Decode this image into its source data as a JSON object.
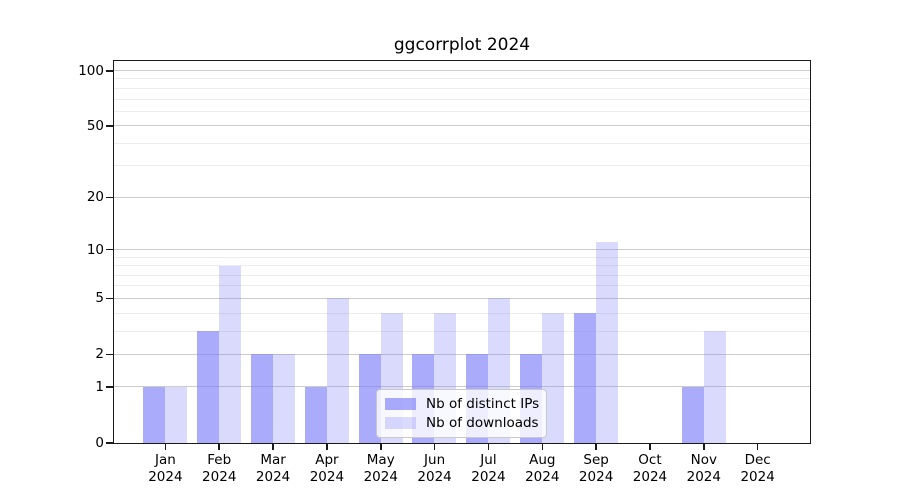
{
  "figure": {
    "title": "ggcorrplot 2024"
  },
  "chart_data": {
    "type": "bar",
    "title": "ggcorrplot 2024",
    "x_categories": [
      "Jan",
      "Feb",
      "Mar",
      "Apr",
      "May",
      "Jun",
      "Jul",
      "Aug",
      "Sep",
      "Oct",
      "Nov",
      "Dec"
    ],
    "x_year": "2024",
    "series": [
      {
        "name": "Nb of distinct IPs",
        "color": "rgba(126,128,247,0.66)",
        "values": [
          1,
          3,
          2,
          1,
          2,
          2,
          2,
          2,
          4,
          0,
          1,
          0
        ]
      },
      {
        "name": "Nb of downloads",
        "color": "rgba(126,128,247,0.29)",
        "values": [
          1,
          8,
          2,
          5,
          4,
          4,
          5,
          4,
          11,
          0,
          3,
          0
        ]
      }
    ],
    "yscale": "log1p",
    "ylim": [
      0,
      113
    ],
    "y_major_ticks": [
      0,
      1,
      2,
      5,
      10,
      20,
      50,
      100
    ],
    "y_minor_ticks": [
      3,
      4,
      6,
      7,
      8,
      9,
      30,
      40,
      60,
      70,
      80,
      90
    ],
    "grid": true,
    "legend_position": "lower center inside axes",
    "colors": {
      "grid_major": "#cccccc",
      "grid_minor": "#ececec",
      "spine": "#1a1a1a",
      "text": "#000000"
    }
  }
}
